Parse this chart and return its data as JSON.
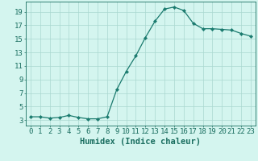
{
  "x": [
    0,
    1,
    2,
    3,
    4,
    5,
    6,
    7,
    8,
    9,
    10,
    11,
    12,
    13,
    14,
    15,
    16,
    17,
    18,
    19,
    20,
    21,
    22,
    23
  ],
  "y": [
    3.5,
    3.5,
    3.3,
    3.4,
    3.7,
    3.4,
    3.2,
    3.2,
    3.5,
    7.5,
    10.2,
    12.5,
    15.2,
    17.6,
    19.4,
    19.7,
    19.2,
    17.3,
    16.5,
    16.5,
    16.4,
    16.3,
    15.8,
    15.4
  ],
  "line_color": "#1a7a6e",
  "marker": "D",
  "marker_size": 2.2,
  "bg_color": "#d4f5ef",
  "grid_color": "#aad8d0",
  "xlabel": "Humidex (Indice chaleur)",
  "xticks": [
    0,
    1,
    2,
    3,
    4,
    5,
    6,
    7,
    8,
    9,
    10,
    11,
    12,
    13,
    14,
    15,
    16,
    17,
    18,
    19,
    20,
    21,
    22,
    23
  ],
  "yticks": [
    3,
    5,
    7,
    9,
    11,
    13,
    15,
    17,
    19
  ],
  "xlim": [
    -0.5,
    23.5
  ],
  "ylim": [
    2.2,
    20.5
  ],
  "tick_color": "#1a6e60",
  "label_color": "#1a6e60",
  "xlabel_fontsize": 7.5,
  "tick_fontsize": 6.5
}
